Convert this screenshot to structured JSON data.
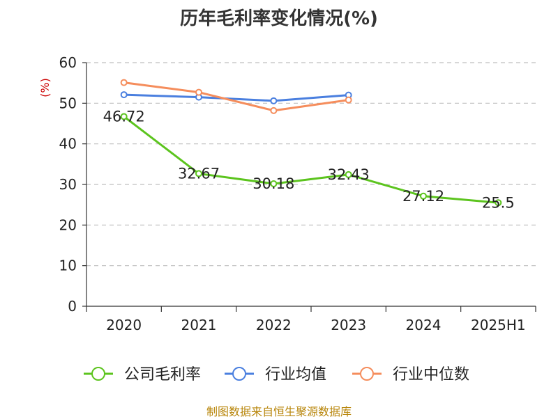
{
  "title": "历年毛利率变化情况(%)",
  "footer": "制图数据来自恒生聚源数据库",
  "chart_data": {
    "type": "line",
    "title": "历年毛利率变化情况(%)",
    "ylabel": "(%)",
    "xlabel": "",
    "ylim": [
      0,
      60
    ],
    "yticks": [
      0,
      10,
      20,
      30,
      40,
      50,
      60
    ],
    "grid": true,
    "legend_position": "bottom",
    "categories": [
      "2020",
      "2021",
      "2022",
      "2023",
      "2024",
      "2025H1"
    ],
    "series": [
      {
        "name": "公司毛利率",
        "color": "#5cc41e",
        "values": [
          46.72,
          32.67,
          30.18,
          32.43,
          27.12,
          25.5
        ],
        "labels": [
          "46.72",
          "32.67",
          "30.18",
          "32.43",
          "27.12",
          "25.5"
        ]
      },
      {
        "name": "行业均值",
        "color": "#4a7fdf",
        "values": [
          52.1,
          51.5,
          50.6,
          52.0,
          null,
          null
        ]
      },
      {
        "name": "行业中位数",
        "color": "#f58d5c",
        "values": [
          55.1,
          52.7,
          48.2,
          50.8,
          null,
          null
        ]
      }
    ]
  }
}
